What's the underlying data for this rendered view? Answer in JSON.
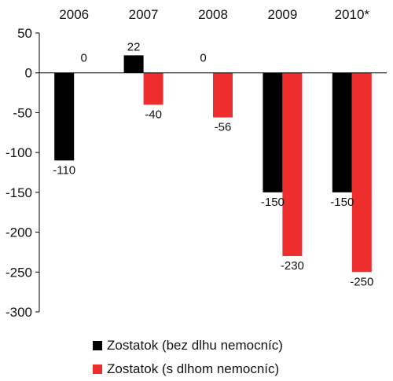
{
  "chart_data": {
    "type": "bar",
    "categories": [
      "2006",
      "2007",
      "2008",
      "2009",
      "2010*"
    ],
    "series": [
      {
        "name": "Zostatok (bez dlhu nemocníc)",
        "values": [
          -110,
          22,
          0,
          -150,
          -150
        ],
        "labels": [
          "-110",
          "22",
          "0",
          "-150",
          "-150"
        ],
        "color": "#000000"
      },
      {
        "name": "Zostatok (s dlhom nemocníc)",
        "values": [
          0,
          -40,
          -56,
          -230,
          -250
        ],
        "labels": [
          "0",
          "-40",
          "-56",
          "-230",
          "-250"
        ],
        "color": "#ee2d2d"
      }
    ],
    "ylim": [
      -300,
      50
    ],
    "yticks": [
      50,
      0,
      -50,
      -100,
      -150,
      -200,
      -250,
      -300
    ],
    "ytick_labels": [
      "50",
      "0",
      "-50",
      "-100",
      "-150",
      "-200",
      "-250",
      "-300"
    ],
    "xaxis_position": "top",
    "grid": false,
    "legend_position": "bottom"
  }
}
